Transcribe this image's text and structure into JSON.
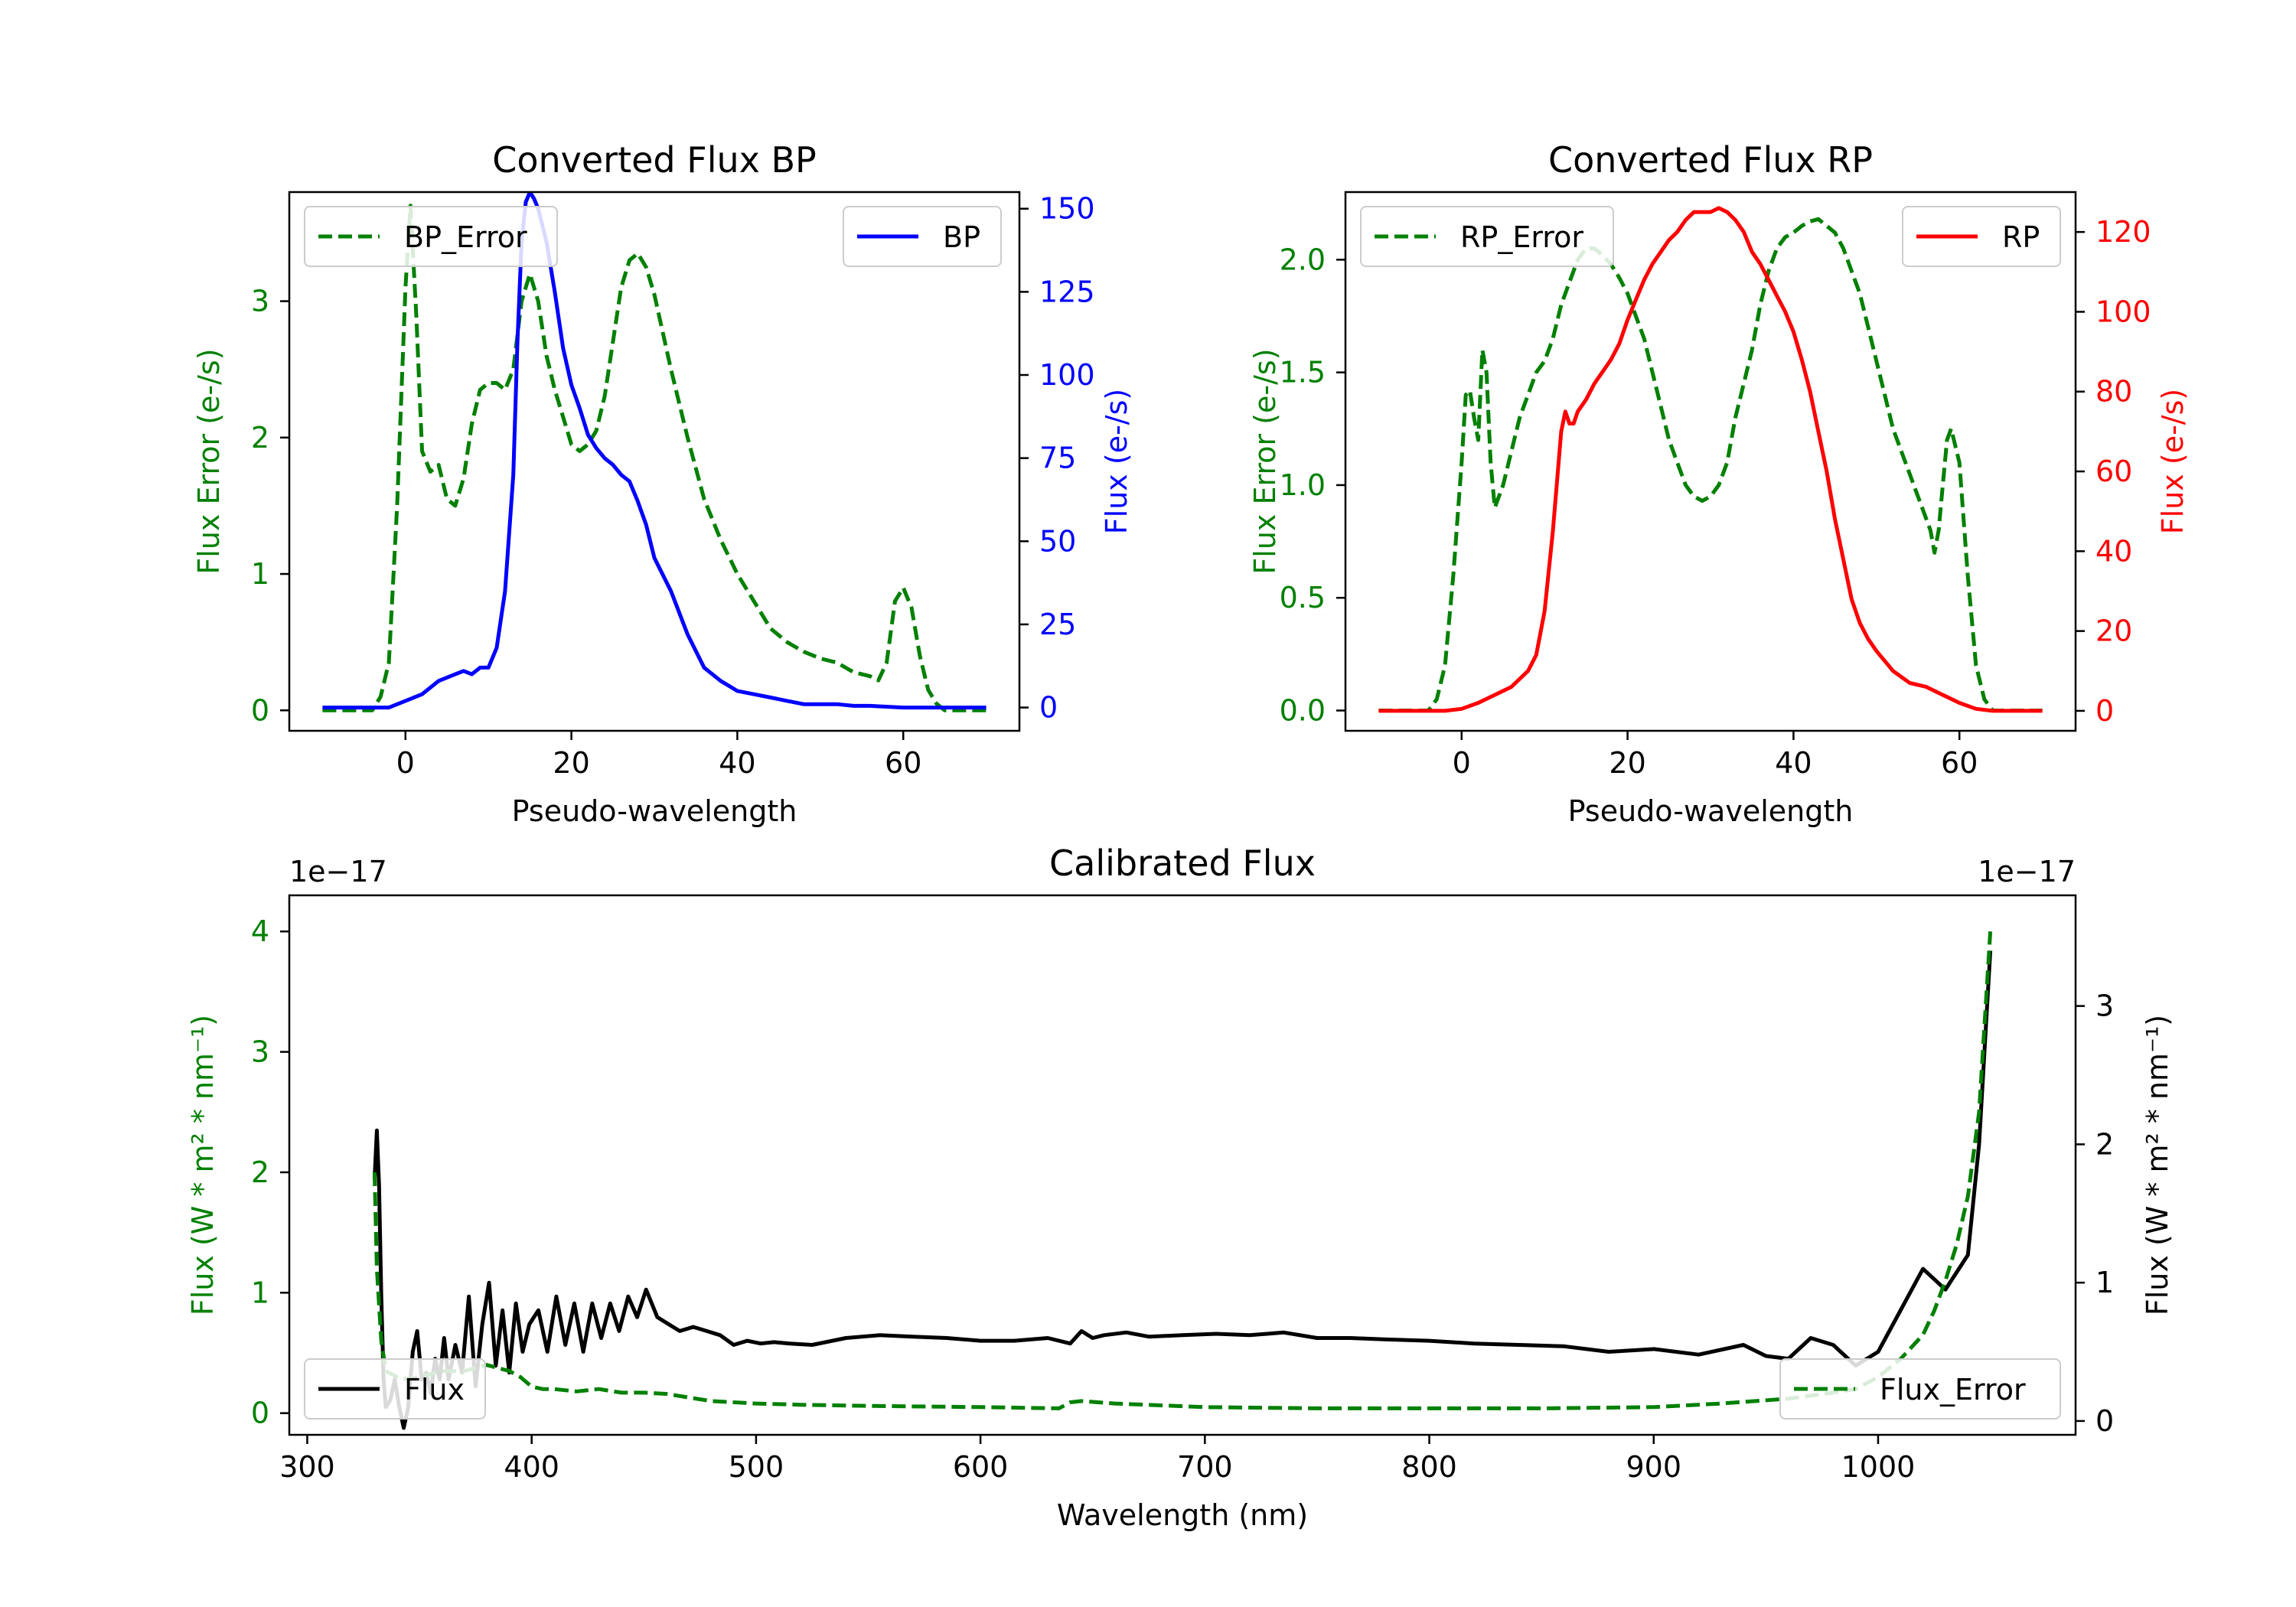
{
  "colors": {
    "green": "#008000",
    "blue": "#0000ff",
    "red": "#ff0000",
    "black": "#000000"
  },
  "chart_data": [
    {
      "id": "bp",
      "type": "line",
      "title": "Converted Flux BP",
      "xlabel": "Pseudo-wavelength",
      "xlim": [
        -14,
        74
      ],
      "xticks": [
        "0",
        "20",
        "40",
        "60"
      ],
      "xtick_values": [
        0,
        20,
        40,
        60
      ],
      "left_axis": {
        "label": "Flux Error (e-/s)",
        "color": "green",
        "lim": [
          -0.15,
          3.8
        ],
        "tick_values": [
          0,
          1,
          2,
          3
        ],
        "ticks": [
          "0",
          "1",
          "2",
          "3"
        ]
      },
      "right_axis": {
        "label": "Flux (e-/s)",
        "color": "blue",
        "lim": [
          -7,
          155
        ],
        "tick_values": [
          0,
          25,
          50,
          75,
          100,
          125,
          150
        ],
        "ticks": [
          "0",
          "25",
          "50",
          "75",
          "100",
          "125",
          "150"
        ]
      },
      "series": [
        {
          "name": "BP_Error",
          "axis": "left",
          "color": "green",
          "dash": true,
          "legend": "upper left",
          "x": [
            -10,
            -4,
            -3,
            -2,
            -1,
            0,
            0.6,
            1.3,
            2,
            3,
            4,
            5,
            6,
            7,
            8,
            9,
            10,
            11,
            12,
            13,
            14,
            15,
            16,
            17,
            18,
            19,
            20,
            21,
            22,
            23,
            24,
            25,
            26,
            27,
            28,
            29,
            30,
            32,
            34,
            36,
            38,
            40,
            42,
            44,
            46,
            48,
            50,
            52,
            54,
            56,
            57,
            58,
            59,
            60,
            61,
            62,
            63,
            64,
            65,
            66,
            70
          ],
          "y": [
            0,
            0,
            0.1,
            0.35,
            1.5,
            3.1,
            3.7,
            2.9,
            1.9,
            1.75,
            1.8,
            1.55,
            1.5,
            1.7,
            2.1,
            2.35,
            2.4,
            2.4,
            2.35,
            2.5,
            3.0,
            3.2,
            3.0,
            2.6,
            2.35,
            2.15,
            1.95,
            1.9,
            1.95,
            2.05,
            2.3,
            2.7,
            3.1,
            3.3,
            3.35,
            3.25,
            3.05,
            2.5,
            2.0,
            1.55,
            1.25,
            1.0,
            0.8,
            0.6,
            0.5,
            0.43,
            0.38,
            0.35,
            0.28,
            0.25,
            0.22,
            0.35,
            0.8,
            0.9,
            0.75,
            0.4,
            0.15,
            0.05,
            0,
            0,
            0
          ]
        },
        {
          "name": "BP",
          "axis": "right",
          "color": "blue",
          "dash": false,
          "legend": "upper right",
          "x": [
            -10,
            -2,
            0,
            2,
            4,
            6,
            7,
            8,
            9,
            10,
            11,
            12,
            13,
            13.5,
            14,
            14.5,
            15,
            15.5,
            16,
            17,
            18,
            19,
            20,
            21,
            22,
            23,
            24,
            25,
            26,
            27,
            28,
            29,
            30,
            32,
            34,
            36,
            38,
            40,
            42,
            44,
            46,
            48,
            50,
            52,
            54,
            56,
            60,
            65,
            70
          ],
          "y": [
            0,
            0,
            2,
            4,
            8,
            10,
            11,
            10,
            12,
            12,
            18,
            35,
            70,
            110,
            140,
            152,
            155,
            153,
            150,
            140,
            125,
            108,
            97,
            90,
            82,
            78,
            75,
            73,
            70,
            68,
            62,
            55,
            45,
            35,
            22,
            12,
            8,
            5,
            4,
            3,
            2,
            1,
            1,
            1,
            0.5,
            0.5,
            0,
            0,
            0
          ]
        }
      ]
    },
    {
      "id": "rp",
      "type": "line",
      "title": "Converted Flux RP",
      "xlabel": "Pseudo-wavelength",
      "xlim": [
        -14,
        74
      ],
      "xticks": [
        "0",
        "20",
        "40",
        "60"
      ],
      "xtick_values": [
        0,
        20,
        40,
        60
      ],
      "left_axis": {
        "label": "Flux Error (e-/s)",
        "color": "green",
        "lim": [
          -0.09,
          2.3
        ],
        "tick_values": [
          0,
          0.5,
          1.0,
          1.5,
          2.0
        ],
        "ticks": [
          "0.0",
          "0.5",
          "1.0",
          "1.5",
          "2.0"
        ]
      },
      "right_axis": {
        "label": "Flux (e-/s)",
        "color": "red",
        "lim": [
          -5,
          130
        ],
        "tick_values": [
          0,
          20,
          40,
          60,
          80,
          100,
          120
        ],
        "ticks": [
          "0",
          "20",
          "40",
          "60",
          "80",
          "100",
          "120"
        ]
      },
      "series": [
        {
          "name": "RP_Error",
          "axis": "left",
          "color": "green",
          "dash": true,
          "legend": "upper left",
          "x": [
            -10,
            -4,
            -3,
            -2,
            -1,
            0,
            0.5,
            1,
            1.5,
            2,
            2.5,
            3,
            3.5,
            4,
            5,
            6,
            7,
            8,
            9,
            10,
            11,
            12,
            13,
            14,
            15,
            16,
            17,
            18,
            19,
            20,
            21,
            22,
            23,
            24,
            25,
            26,
            27,
            28,
            29,
            30,
            31,
            32,
            33,
            34,
            35,
            36,
            37,
            38,
            39,
            40,
            41,
            42,
            43,
            44,
            45,
            46,
            47,
            48,
            49,
            50,
            51,
            52,
            53,
            54,
            55,
            56,
            56.5,
            57,
            57.5,
            58,
            58.5,
            59,
            60,
            61,
            62,
            63,
            64,
            65,
            70
          ],
          "y": [
            0,
            0,
            0.05,
            0.2,
            0.6,
            1.1,
            1.4,
            1.42,
            1.3,
            1.2,
            1.6,
            1.5,
            1.1,
            0.9,
            1.0,
            1.15,
            1.3,
            1.4,
            1.5,
            1.55,
            1.65,
            1.8,
            1.9,
            2.0,
            2.05,
            2.05,
            2.02,
            1.98,
            1.92,
            1.85,
            1.75,
            1.65,
            1.5,
            1.35,
            1.2,
            1.1,
            1.0,
            0.95,
            0.93,
            0.95,
            1.0,
            1.1,
            1.3,
            1.45,
            1.6,
            1.8,
            1.95,
            2.05,
            2.1,
            2.12,
            2.15,
            2.17,
            2.18,
            2.15,
            2.12,
            2.05,
            1.95,
            1.85,
            1.7,
            1.55,
            1.4,
            1.25,
            1.15,
            1.05,
            0.95,
            0.85,
            0.8,
            0.7,
            0.8,
            1.0,
            1.2,
            1.25,
            1.1,
            0.6,
            0.2,
            0.05,
            0,
            0,
            0
          ]
        },
        {
          "name": "RP",
          "axis": "right",
          "color": "red",
          "dash": false,
          "legend": "upper right",
          "x": [
            -10,
            -2,
            0,
            2,
            4,
            6,
            8,
            9,
            10,
            11,
            12,
            12.5,
            13,
            13.5,
            14,
            15,
            16,
            17,
            18,
            19,
            20,
            21,
            22,
            23,
            24,
            25,
            26,
            27,
            28,
            29,
            30,
            31,
            32,
            33,
            34,
            35,
            36,
            37,
            38,
            39,
            40,
            41,
            42,
            43,
            44,
            45,
            46,
            47,
            48,
            49,
            50,
            52,
            54,
            56,
            58,
            60,
            62,
            64,
            70
          ],
          "y": [
            0,
            0,
            0.5,
            2,
            4,
            6,
            10,
            14,
            25,
            45,
            70,
            75,
            72,
            72,
            75,
            78,
            82,
            85,
            88,
            92,
            98,
            103,
            108,
            112,
            115,
            118,
            120,
            123,
            125,
            125,
            125,
            126,
            125,
            123,
            120,
            115,
            112,
            108,
            104,
            100,
            95,
            88,
            80,
            70,
            60,
            48,
            38,
            28,
            22,
            18,
            15,
            10,
            7,
            6,
            4,
            2,
            0.5,
            0,
            0
          ]
        }
      ]
    },
    {
      "id": "cal",
      "type": "line",
      "title": "Calibrated Flux",
      "xlabel": "Wavelength (nm)",
      "xlim": [
        292,
        1088
      ],
      "xticks": [
        "300",
        "400",
        "500",
        "600",
        "700",
        "800",
        "900",
        "1000"
      ],
      "xtick_values": [
        300,
        400,
        500,
        600,
        700,
        800,
        900,
        1000
      ],
      "left_axis": {
        "label": "Flux (W * m² * nm⁻¹)",
        "color": "green",
        "offset_text": "1e−17",
        "lim": [
          -0.18,
          4.3
        ],
        "tick_values": [
          0,
          1,
          2,
          3,
          4
        ],
        "ticks": [
          "0",
          "1",
          "2",
          "3",
          "4"
        ]
      },
      "right_axis": {
        "label": "Flux (W * m² * nm⁻¹)",
        "color": "black",
        "offset_text": "1e−17",
        "lim": [
          -0.1,
          3.8
        ],
        "tick_values": [
          0,
          1,
          2,
          3
        ],
        "ticks": [
          "0",
          "1",
          "2",
          "3"
        ]
      },
      "series": [
        {
          "name": "Flux",
          "axis": "right",
          "color": "black",
          "dash": false,
          "legend": "lower left",
          "x": [
            330,
            331,
            332,
            333,
            334,
            335,
            337,
            339,
            341,
            343,
            345,
            347,
            349,
            351,
            353,
            355,
            357,
            359,
            361,
            363,
            366,
            369,
            372,
            375,
            378,
            381,
            384,
            387,
            390,
            393,
            396,
            399,
            403,
            407,
            411,
            415,
            419,
            423,
            427,
            431,
            435,
            439,
            443,
            447,
            451,
            456,
            461,
            466,
            472,
            478,
            484,
            490,
            496,
            502,
            508,
            515,
            525,
            540,
            555,
            570,
            585,
            600,
            615,
            630,
            640,
            645,
            650,
            655,
            665,
            675,
            690,
            705,
            720,
            735,
            750,
            765,
            780,
            800,
            820,
            840,
            860,
            880,
            900,
            920,
            940,
            950,
            960,
            970,
            980,
            990,
            1000,
            1010,
            1020,
            1030,
            1040,
            1045,
            1050
          ],
          "y": [
            1.75,
            2.1,
            1.7,
            0.9,
            0.3,
            0.1,
            0.15,
            0.3,
            0.1,
            -0.05,
            0.1,
            0.5,
            0.65,
            0.3,
            0.35,
            0.2,
            0.45,
            0.3,
            0.6,
            0.3,
            0.55,
            0.35,
            0.9,
            0.25,
            0.7,
            1.0,
            0.4,
            0.8,
            0.35,
            0.85,
            0.5,
            0.7,
            0.8,
            0.5,
            0.9,
            0.55,
            0.85,
            0.5,
            0.85,
            0.6,
            0.85,
            0.65,
            0.9,
            0.75,
            0.95,
            0.75,
            0.7,
            0.65,
            0.68,
            0.65,
            0.62,
            0.55,
            0.58,
            0.56,
            0.57,
            0.56,
            0.55,
            0.6,
            0.62,
            0.61,
            0.6,
            0.58,
            0.58,
            0.6,
            0.56,
            0.65,
            0.6,
            0.62,
            0.64,
            0.61,
            0.62,
            0.63,
            0.62,
            0.64,
            0.6,
            0.6,
            0.59,
            0.58,
            0.56,
            0.55,
            0.54,
            0.5,
            0.52,
            0.48,
            0.55,
            0.47,
            0.45,
            0.6,
            0.55,
            0.4,
            0.5,
            0.8,
            1.1,
            0.95,
            1.2,
            2.0,
            3.4
          ]
        },
        {
          "name": "Flux_Error",
          "axis": "left",
          "color": "green",
          "dash": true,
          "legend": "lower right",
          "x": [
            330,
            331,
            333,
            335,
            340,
            345,
            350,
            360,
            370,
            380,
            390,
            395,
            400,
            405,
            410,
            420,
            430,
            440,
            450,
            460,
            470,
            480,
            500,
            520,
            550,
            600,
            635,
            640,
            645,
            660,
            700,
            750,
            800,
            850,
            900,
            930,
            960,
            980,
            990,
            1000,
            1010,
            1020,
            1025,
            1030,
            1035,
            1040,
            1045,
            1050
          ],
          "y": [
            2.0,
            1.2,
            0.6,
            0.35,
            0.3,
            0.28,
            0.3,
            0.35,
            0.35,
            0.4,
            0.35,
            0.3,
            0.22,
            0.2,
            0.2,
            0.18,
            0.2,
            0.17,
            0.17,
            0.16,
            0.13,
            0.1,
            0.08,
            0.07,
            0.06,
            0.05,
            0.04,
            0.09,
            0.1,
            0.08,
            0.05,
            0.04,
            0.04,
            0.04,
            0.05,
            0.08,
            0.12,
            0.17,
            0.2,
            0.3,
            0.45,
            0.65,
            0.85,
            1.1,
            1.4,
            1.8,
            2.5,
            4.0
          ]
        }
      ]
    }
  ]
}
